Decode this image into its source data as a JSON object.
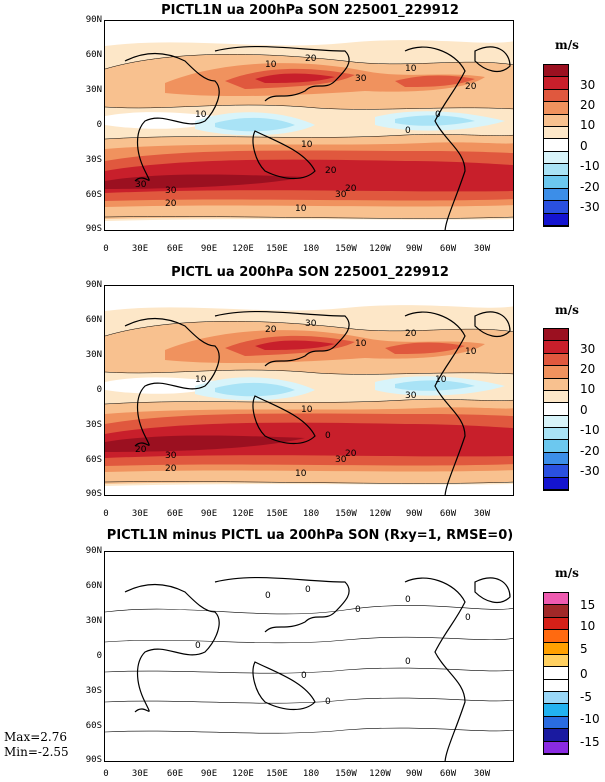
{
  "panels": [
    {
      "title": "PICTL1N ua 200hPa SON 225001_229912",
      "unit": "m/s",
      "colorbar": {
        "labels": [
          "30",
          "20",
          "10",
          "0",
          "-10",
          "-20",
          "-30"
        ],
        "colors": [
          "#9b1020",
          "#c81f2b",
          "#e0583e",
          "#f0925e",
          "#f8c18f",
          "#fde7c8",
          "#ffffff",
          "#d8f4fa",
          "#a9e3f6",
          "#6cc8ef",
          "#3c8ee8",
          "#2a50e0",
          "#1414d0"
        ]
      },
      "contour_labels": [
        "10",
        "20",
        "30",
        "10",
        "20",
        "10",
        "0",
        "10",
        "20",
        "30",
        "30",
        "30",
        "20",
        "20",
        "10",
        "0"
      ]
    },
    {
      "title": "PICTL ua 200hPa SON 225001_229912",
      "unit": "m/s",
      "colorbar": {
        "labels": [
          "30",
          "20",
          "10",
          "0",
          "-10",
          "-20",
          "-30"
        ],
        "colors": [
          "#9b1020",
          "#c81f2b",
          "#e0583e",
          "#f0925e",
          "#f8c18f",
          "#fde7c8",
          "#ffffff",
          "#d8f4fa",
          "#a9e3f6",
          "#6cc8ef",
          "#3c8ee8",
          "#2a50e0",
          "#1414d0"
        ]
      },
      "contour_labels": [
        "20",
        "30",
        "10",
        "20",
        "10",
        "10",
        "30",
        "10",
        "0",
        "20",
        "30",
        "30",
        "20",
        "20",
        "10",
        "10"
      ]
    },
    {
      "title": "PICTL1N minus PICTL ua 200hPa SON (Rxy=1, RMSE=0)",
      "unit": "m/s",
      "colorbar": {
        "labels": [
          "15",
          "10",
          "5",
          "0",
          "-5",
          "-10",
          "-15"
        ],
        "colors": [
          "#ee5bb0",
          "#a02828",
          "#d62018",
          "#ff6a10",
          "#ffa000",
          "#ffd060",
          "#ffffff",
          "#ffffff",
          "#9ad8f8",
          "#22b2f0",
          "#2a6ce0",
          "#1a1aa0",
          "#8a2be2"
        ]
      },
      "contour_labels": [
        "0",
        "0",
        "0",
        "0",
        "0",
        "0",
        "0",
        "0",
        "0"
      ]
    }
  ],
  "map_axes": {
    "lat_labels": [
      "90N",
      "60N",
      "30N",
      "0",
      "30S",
      "60S",
      "90S"
    ],
    "lon_labels": [
      "0",
      "30E",
      "60E",
      "90E",
      "120E",
      "150E",
      "180",
      "150W",
      "120W",
      "90W",
      "60W",
      "30W"
    ]
  },
  "stats": {
    "max": "Max=2.76",
    "min": "Min=-2.55"
  }
}
